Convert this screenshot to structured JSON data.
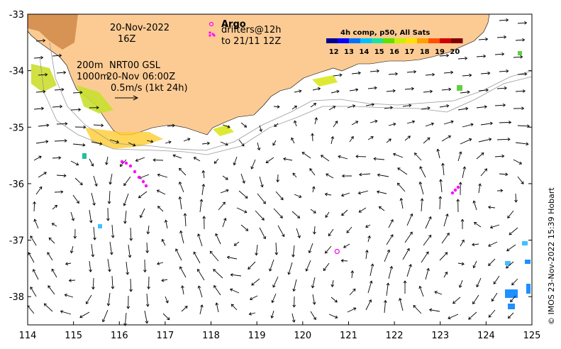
{
  "map": {
    "lon_range": [
      114,
      125
    ],
    "lat_range": [
      -38.5,
      -33
    ],
    "lon_ticks": [
      "114",
      "115",
      "116",
      "117",
      "118",
      "119",
      "120",
      "121",
      "122",
      "123",
      "124",
      "125"
    ],
    "lat_ticks": [
      "-33",
      "-34",
      "-35",
      "-36",
      "-37",
      "-38"
    ],
    "land_color": "#fccb94",
    "background_color": "#ffffff"
  },
  "annotations": {
    "date": "20-Nov-2022",
    "time": "16Z",
    "depth1": "200m",
    "source": "NRT00 GSL",
    "depth2": "1000m",
    "ref_time": "20-Nov 06:00Z",
    "scale": "0.5m/s (1kt 24h)"
  },
  "legend": {
    "argo_label": "Argo",
    "drifters_label": "drifters@12h",
    "drifters_to": "to 21/11 12Z",
    "argo_color": "#ff00ff"
  },
  "colorbar": {
    "title": "4h comp, p50, All Sats",
    "labels": [
      "12",
      "13",
      "14",
      "15",
      "16",
      "17",
      "18",
      "19",
      "20"
    ],
    "colors": [
      "#00008f",
      "#0000ff",
      "#0070ff",
      "#00c0ff",
      "#20e0a0",
      "#60e000",
      "#c8f000",
      "#ffe000",
      "#ffa000",
      "#ff5000",
      "#d00000",
      "#800000"
    ]
  },
  "credit": "© IMOS 23-Nov-2022 15:39 Hobart",
  "argo_float": {
    "lon": 120.75,
    "lat": -37.2
  }
}
